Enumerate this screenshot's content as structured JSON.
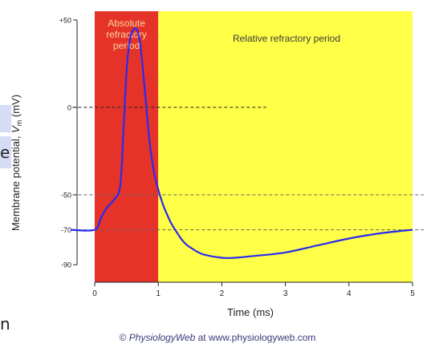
{
  "chart_data": {
    "type": "line",
    "xlabel": "Time (ms)",
    "ylabel": "Membrane potential, Vm (mV)",
    "ylabel_parts": [
      "Membrane potential, ",
      "V",
      "m",
      " (mV)"
    ],
    "xlim": [
      0,
      5
    ],
    "ylim": [
      -100,
      55
    ],
    "x_ticks": [
      0,
      1,
      2,
      3,
      4,
      5
    ],
    "y_ticks": [
      50,
      0,
      -50,
      -70,
      -90
    ],
    "y_tick_labels": [
      "+50",
      "0",
      "-50",
      "-70",
      "-90"
    ],
    "regions": [
      {
        "name": "Absolute refractory period",
        "lines": [
          "Absolute",
          "refractory",
          "period"
        ],
        "x0": 0,
        "x1": 1,
        "color": "#e63329"
      },
      {
        "name": "Relative refractory period",
        "lines": [
          "Relative refractory period"
        ],
        "x0": 1,
        "x1": 5,
        "color": "#ffff47"
      }
    ],
    "reference_lines": [
      {
        "y": 0,
        "x0": -0.35,
        "x1": 2.7
      },
      {
        "y": -50,
        "x0": -0.35,
        "x1": 5.2
      },
      {
        "y": -70,
        "x0": -0.35,
        "x1": 5.2
      }
    ],
    "series": [
      {
        "color": "#2a2af0",
        "x": [
          0.0,
          0.1,
          0.2,
          0.3,
          0.4,
          0.45,
          0.5,
          0.55,
          0.6,
          0.65,
          0.7,
          0.75,
          0.8,
          0.85,
          0.9,
          0.95,
          1.0,
          1.05,
          1.1,
          1.2,
          1.3,
          1.4,
          1.5,
          1.7,
          2.0,
          2.2,
          2.5,
          3.0,
          3.5,
          4.0,
          4.5,
          5.0
        ],
        "y": [
          -70,
          -63,
          -57,
          -53,
          -45,
          -15,
          20,
          38,
          44,
          45,
          40,
          25,
          5,
          -15,
          -30,
          -40,
          -47,
          -53,
          -58,
          -66,
          -72,
          -77,
          -80,
          -84,
          -86,
          -86,
          -85,
          -83,
          -79,
          -75,
          -72,
          -70
        ]
      }
    ]
  },
  "credit": {
    "symbol": "©",
    "brand": "PhysiologyWeb",
    "text": " at www.physiologyweb.com"
  },
  "edge_fragments": [
    "e",
    "n"
  ]
}
